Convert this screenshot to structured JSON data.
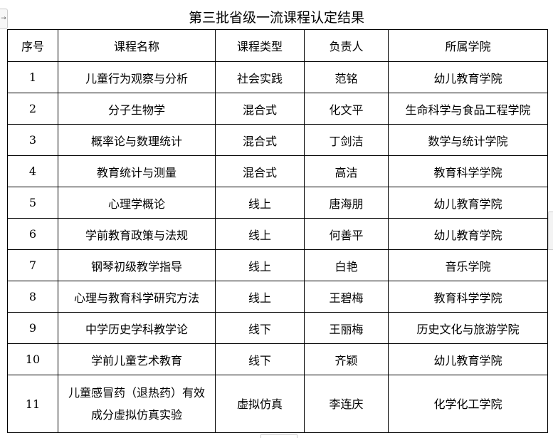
{
  "title": "第三批省级一流课程认定结果",
  "table": {
    "headers": [
      "序号",
      "课程名称",
      "课程类型",
      "负责人",
      "所属学院"
    ],
    "rows": [
      [
        "1",
        "儿童行为观察与分析",
        "社会实践",
        "范铭",
        "幼儿教育学院"
      ],
      [
        "2",
        "分子生物学",
        "混合式",
        "化文平",
        "生命科学与食品工程学院"
      ],
      [
        "3",
        "概率论与数理统计",
        "混合式",
        "丁剑洁",
        "数学与统计学院"
      ],
      [
        "4",
        "教育统计与测量",
        "混合式",
        "高洁",
        "教育科学学院"
      ],
      [
        "5",
        "心理学概论",
        "线上",
        "唐海朋",
        "幼儿教育学院"
      ],
      [
        "6",
        "学前教育政策与法规",
        "线上",
        "何善平",
        "幼儿教育学院"
      ],
      [
        "7",
        "钢琴初级教学指导",
        "线上",
        "白艳",
        "音乐学院"
      ],
      [
        "8",
        "心理与教育科学研究方法",
        "线上",
        "王碧梅",
        "教育科学学院"
      ],
      [
        "9",
        "中学历史学科教学论",
        "线下",
        "王丽梅",
        "历史文化与旅游学院"
      ],
      [
        "10",
        "学前儿童艺术教育",
        "线下",
        "齐颖",
        "幼儿教育学院"
      ],
      [
        "11",
        "儿童感冒药（退热药）有效成分虚拟仿真实验",
        "虚拟仿真",
        "李连庆",
        "化学化工学院"
      ]
    ]
  }
}
